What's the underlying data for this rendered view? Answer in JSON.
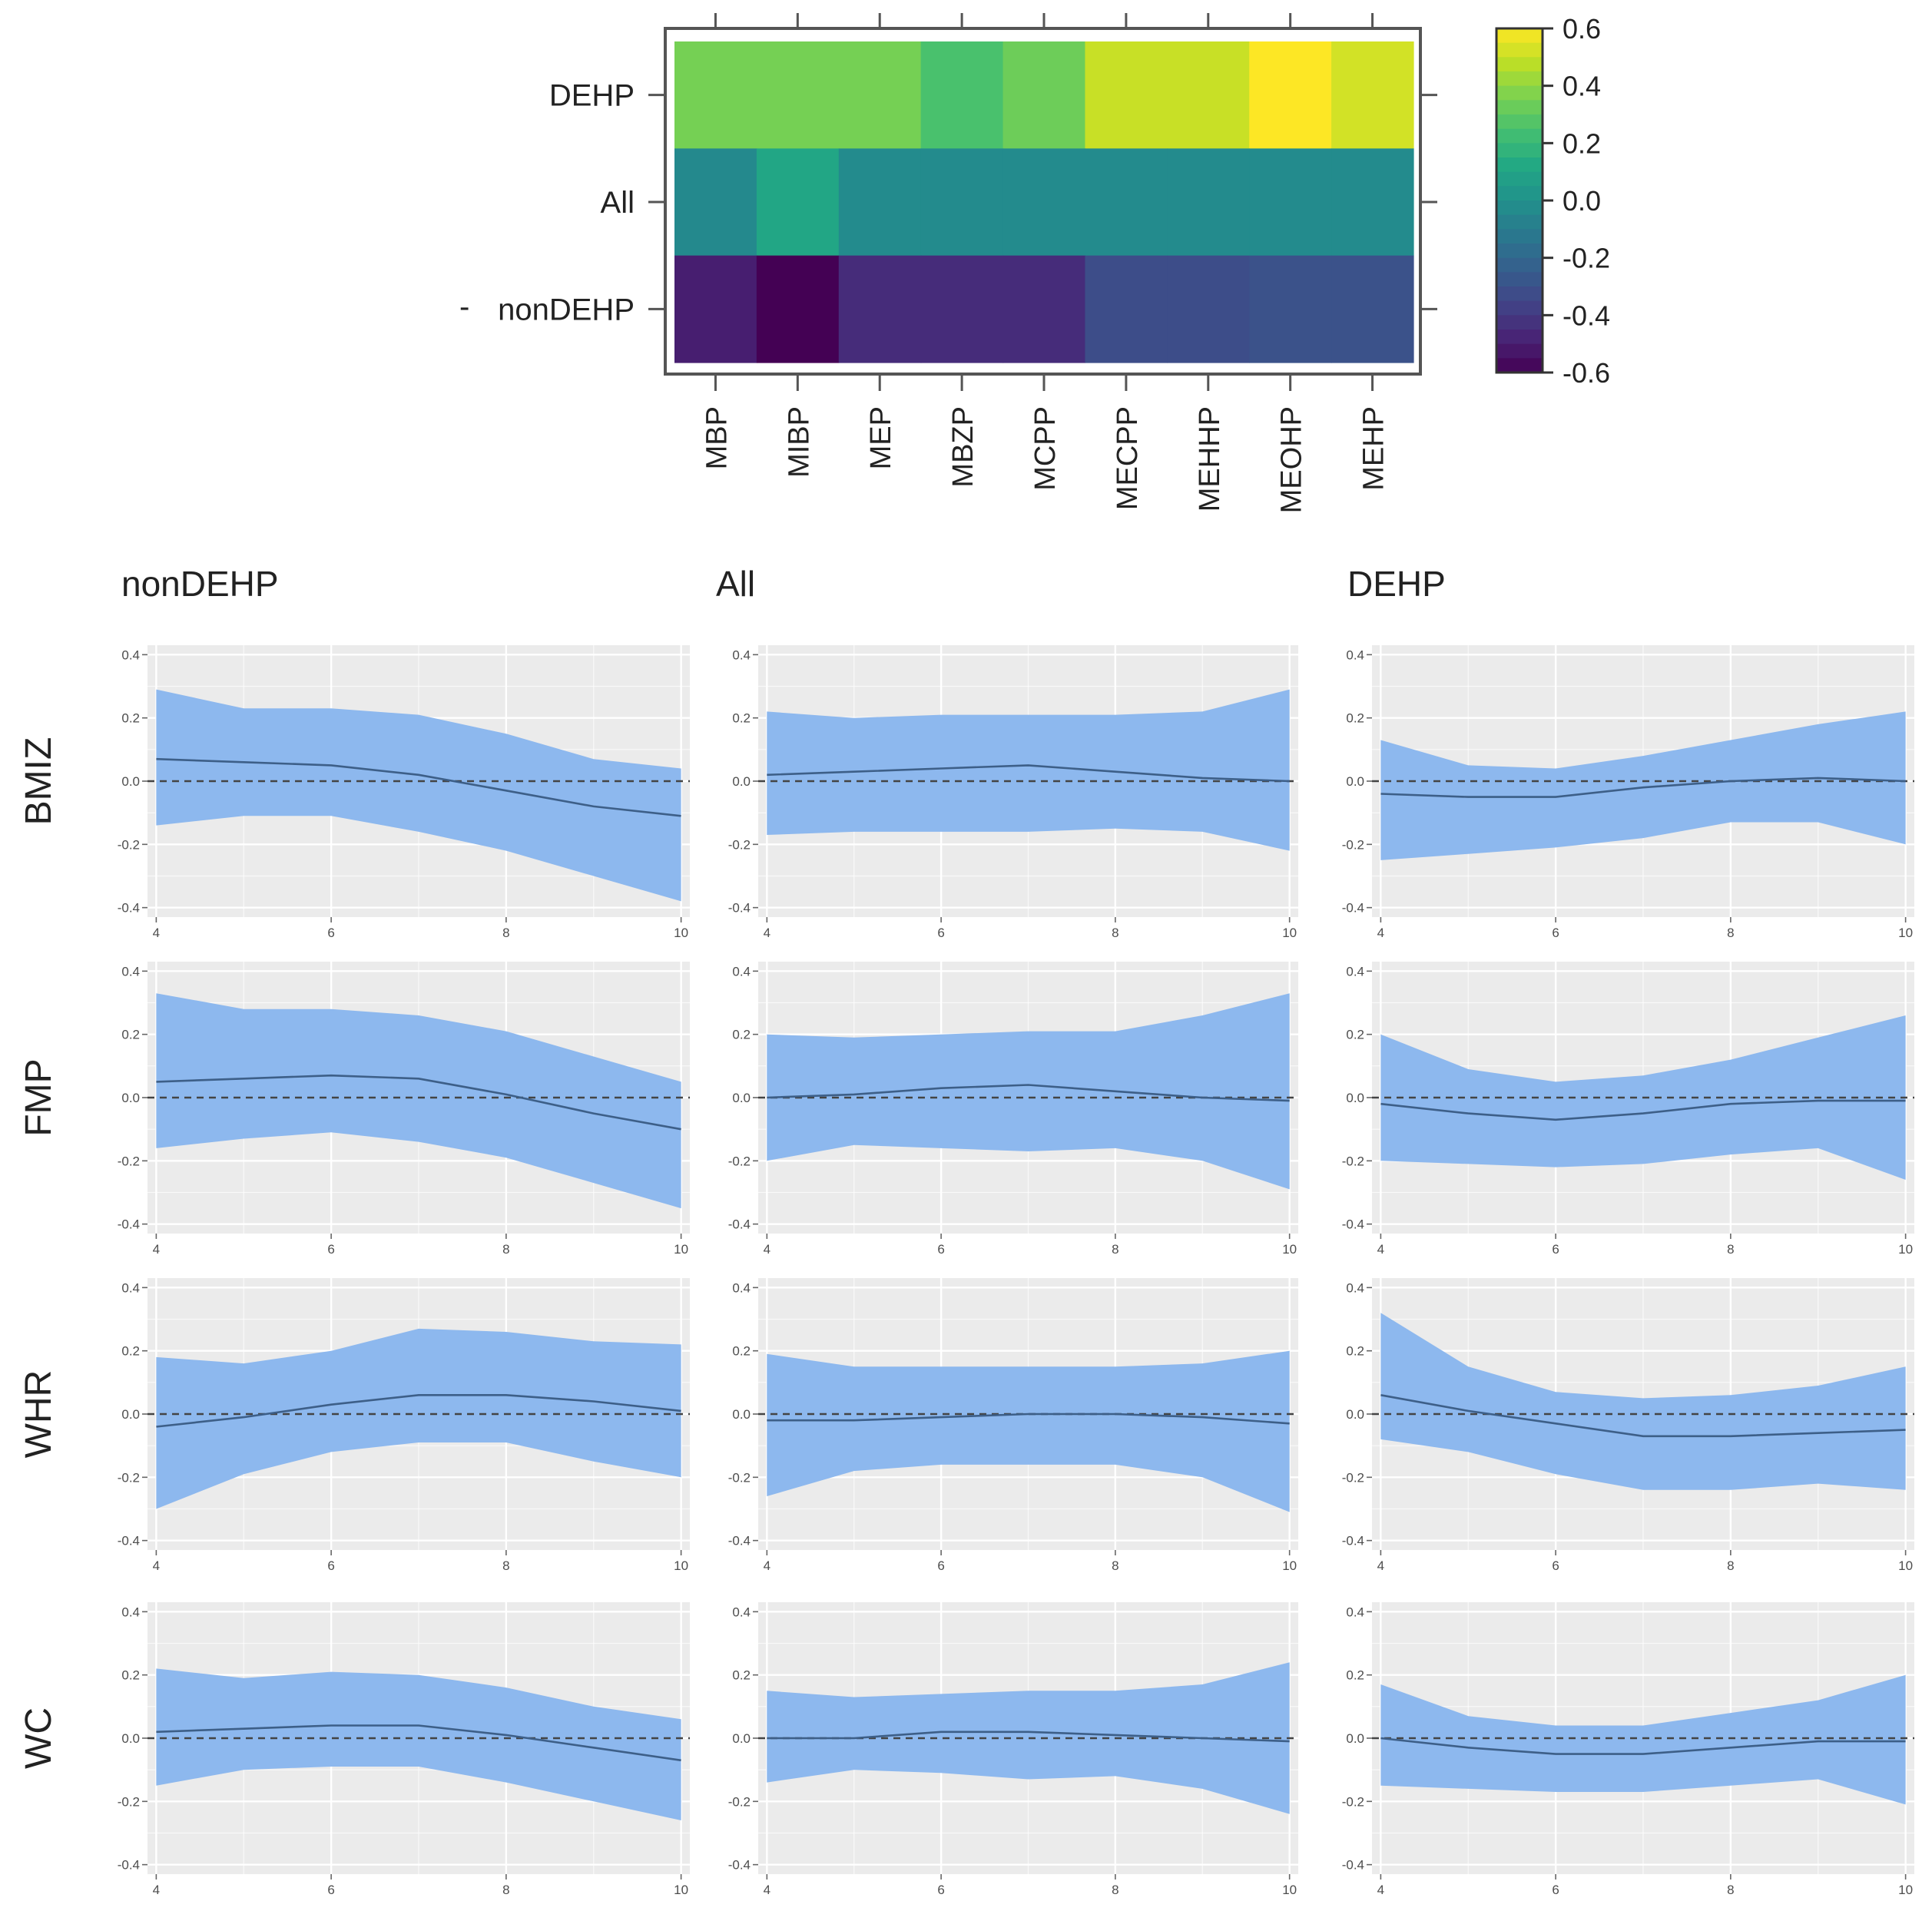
{
  "colors": {
    "band": "#8db8ee",
    "line": "#3d5f88",
    "panel_bg": "#ebebeb",
    "grid": "#ffffff",
    "zero_line": "#444444"
  },
  "chart_data": [
    {
      "type": "heatmap",
      "title": "",
      "rows": [
        "DEHP",
        "All",
        "nonDEHP"
      ],
      "row_label_prefixes": [
        "",
        "",
        "-"
      ],
      "columns": [
        "MBP",
        "MIBP",
        "MEP",
        "MBZP",
        "MCPP",
        "MECPP",
        "MEHHP",
        "MEOHP",
        "MEHP"
      ],
      "values": [
        [
          0.35,
          0.35,
          0.35,
          0.25,
          0.33,
          0.5,
          0.5,
          0.6,
          0.52
        ],
        [
          -0.04,
          0.11,
          -0.03,
          -0.03,
          -0.03,
          -0.03,
          -0.03,
          -0.03,
          -0.03
        ],
        [
          -0.5,
          -0.62,
          -0.45,
          -0.45,
          -0.45,
          -0.32,
          -0.32,
          -0.3,
          -0.3
        ]
      ],
      "color_scale": "viridis",
      "colorbar": {
        "min": -0.6,
        "max": 0.6,
        "ticks": [
          0.6,
          0.4,
          0.2,
          0.0,
          -0.2,
          -0.4,
          -0.6
        ],
        "tick_labels": [
          "0.6",
          "0.4",
          "0.2",
          "0.0",
          "-0.2",
          "-0.4",
          "-0.6"
        ]
      }
    },
    {
      "type": "area",
      "description": "Faceted line plots with confidence bands",
      "column_titles": [
        "nonDEHP",
        "All",
        "DEHP"
      ],
      "row_titles": [
        "BMIZ",
        "FMP",
        "WHR",
        "WC"
      ],
      "x": [
        4,
        5,
        6,
        7,
        8,
        9,
        10
      ],
      "xlim": [
        3.9,
        10.1
      ],
      "ylim": [
        -0.43,
        0.43
      ],
      "x_ticks": [
        4,
        6,
        8,
        10
      ],
      "x_tick_labels": [
        "4",
        "6",
        "8",
        "10"
      ],
      "y_ticks": [
        0.4,
        0.2,
        0.0,
        -0.2,
        -0.4
      ],
      "y_tick_labels": [
        "0.4",
        "0.2",
        "0.0",
        "-0.2",
        "-0.4"
      ],
      "reference_line": 0,
      "panels": [
        {
          "row": "BMIZ",
          "col": "nonDEHP",
          "estimate": [
            0.07,
            0.06,
            0.05,
            0.02,
            -0.03,
            -0.08,
            -0.11
          ],
          "upper": [
            0.29,
            0.23,
            0.23,
            0.21,
            0.15,
            0.07,
            0.04
          ],
          "lower": [
            -0.14,
            -0.11,
            -0.11,
            -0.16,
            -0.22,
            -0.3,
            -0.38
          ]
        },
        {
          "row": "BMIZ",
          "col": "All",
          "estimate": [
            0.02,
            0.03,
            0.04,
            0.05,
            0.03,
            0.01,
            0.0
          ],
          "upper": [
            0.22,
            0.2,
            0.21,
            0.21,
            0.21,
            0.22,
            0.29
          ],
          "lower": [
            -0.17,
            -0.16,
            -0.16,
            -0.16,
            -0.15,
            -0.16,
            -0.22
          ]
        },
        {
          "row": "BMIZ",
          "col": "DEHP",
          "estimate": [
            -0.04,
            -0.05,
            -0.05,
            -0.02,
            0.0,
            0.01,
            0.0
          ],
          "upper": [
            0.13,
            0.05,
            0.04,
            0.08,
            0.13,
            0.18,
            0.22
          ],
          "lower": [
            -0.25,
            -0.23,
            -0.21,
            -0.18,
            -0.13,
            -0.13,
            -0.2
          ]
        },
        {
          "row": "FMP",
          "col": "nonDEHP",
          "estimate": [
            0.05,
            0.06,
            0.07,
            0.06,
            0.01,
            -0.05,
            -0.1
          ],
          "upper": [
            0.33,
            0.28,
            0.28,
            0.26,
            0.21,
            0.13,
            0.05
          ],
          "lower": [
            -0.16,
            -0.13,
            -0.11,
            -0.14,
            -0.19,
            -0.27,
            -0.35
          ]
        },
        {
          "row": "FMP",
          "col": "All",
          "estimate": [
            0.0,
            0.01,
            0.03,
            0.04,
            0.02,
            0.0,
            -0.01
          ],
          "upper": [
            0.2,
            0.19,
            0.2,
            0.21,
            0.21,
            0.26,
            0.33
          ],
          "lower": [
            -0.2,
            -0.15,
            -0.16,
            -0.17,
            -0.16,
            -0.2,
            -0.29
          ]
        },
        {
          "row": "FMP",
          "col": "DEHP",
          "estimate": [
            -0.02,
            -0.05,
            -0.07,
            -0.05,
            -0.02,
            -0.01,
            -0.01
          ],
          "upper": [
            0.2,
            0.09,
            0.05,
            0.07,
            0.12,
            0.19,
            0.26
          ],
          "lower": [
            -0.2,
            -0.21,
            -0.22,
            -0.21,
            -0.18,
            -0.16,
            -0.26
          ]
        },
        {
          "row": "WHR",
          "col": "nonDEHP",
          "estimate": [
            -0.04,
            -0.01,
            0.03,
            0.06,
            0.06,
            0.04,
            0.01
          ],
          "upper": [
            0.18,
            0.16,
            0.2,
            0.27,
            0.26,
            0.23,
            0.22
          ],
          "lower": [
            -0.3,
            -0.19,
            -0.12,
            -0.09,
            -0.09,
            -0.15,
            -0.2
          ]
        },
        {
          "row": "WHR",
          "col": "All",
          "estimate": [
            -0.02,
            -0.02,
            -0.01,
            0.0,
            0.0,
            -0.01,
            -0.03
          ],
          "upper": [
            0.19,
            0.15,
            0.15,
            0.15,
            0.15,
            0.16,
            0.2
          ],
          "lower": [
            -0.26,
            -0.18,
            -0.16,
            -0.16,
            -0.16,
            -0.2,
            -0.31
          ]
        },
        {
          "row": "WHR",
          "col": "DEHP",
          "estimate": [
            0.06,
            0.01,
            -0.03,
            -0.07,
            -0.07,
            -0.06,
            -0.05
          ],
          "upper": [
            0.32,
            0.15,
            0.07,
            0.05,
            0.06,
            0.09,
            0.15
          ],
          "lower": [
            -0.08,
            -0.12,
            -0.19,
            -0.24,
            -0.24,
            -0.22,
            -0.24
          ]
        },
        {
          "row": "WC",
          "col": "nonDEHP",
          "estimate": [
            0.02,
            0.03,
            0.04,
            0.04,
            0.01,
            -0.03,
            -0.07
          ],
          "upper": [
            0.22,
            0.19,
            0.21,
            0.2,
            0.16,
            0.1,
            0.06
          ],
          "lower": [
            -0.15,
            -0.1,
            -0.09,
            -0.09,
            -0.14,
            -0.2,
            -0.26
          ]
        },
        {
          "row": "WC",
          "col": "All",
          "estimate": [
            0.0,
            0.0,
            0.02,
            0.02,
            0.01,
            0.0,
            -0.01
          ],
          "upper": [
            0.15,
            0.13,
            0.14,
            0.15,
            0.15,
            0.17,
            0.24
          ],
          "lower": [
            -0.14,
            -0.1,
            -0.11,
            -0.13,
            -0.12,
            -0.16,
            -0.24
          ]
        },
        {
          "row": "WC",
          "col": "DEHP",
          "estimate": [
            0.0,
            -0.03,
            -0.05,
            -0.05,
            -0.03,
            -0.01,
            -0.01
          ],
          "upper": [
            0.17,
            0.07,
            0.04,
            0.04,
            0.08,
            0.12,
            0.2
          ],
          "lower": [
            -0.15,
            -0.16,
            -0.17,
            -0.17,
            -0.15,
            -0.13,
            -0.21
          ]
        }
      ]
    }
  ]
}
